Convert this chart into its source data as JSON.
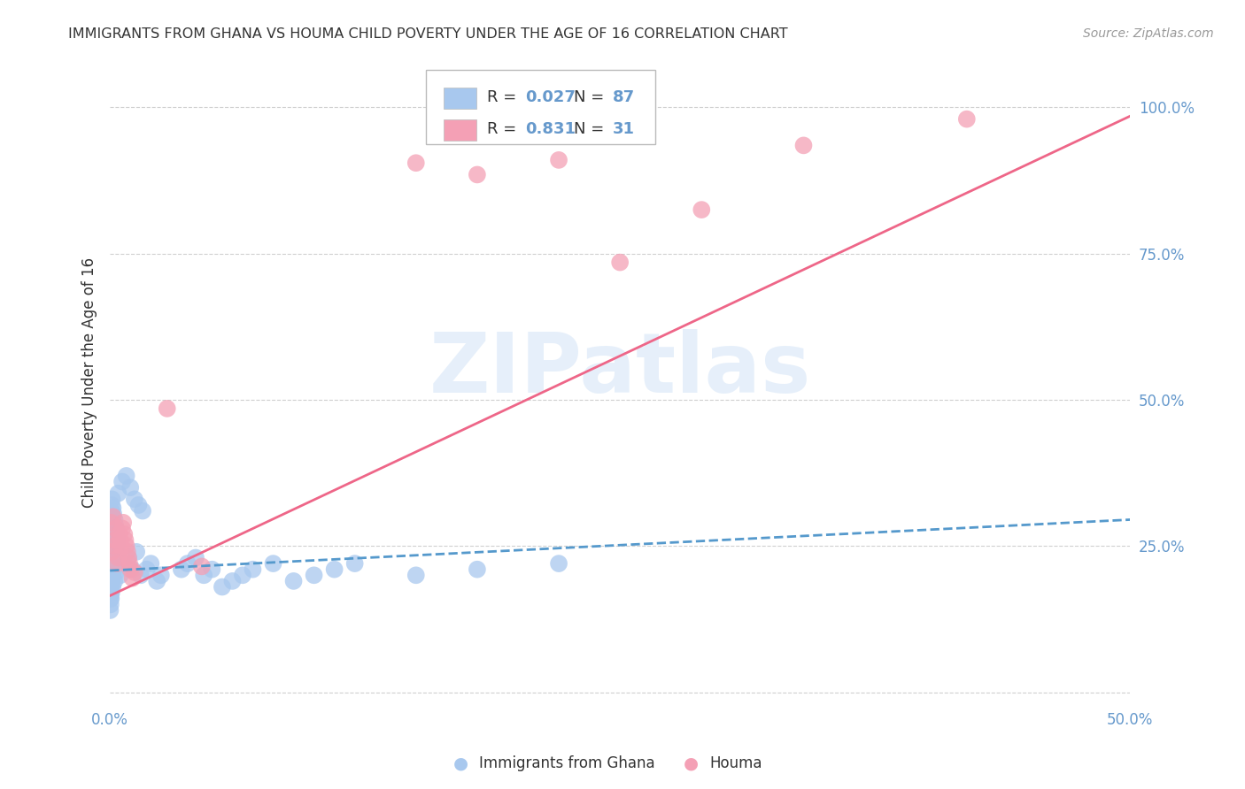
{
  "title": "IMMIGRANTS FROM GHANA VS HOUMA CHILD POVERTY UNDER THE AGE OF 16 CORRELATION CHART",
  "source": "Source: ZipAtlas.com",
  "ylabel": "Child Poverty Under the Age of 16",
  "xlim": [
    0.0,
    0.5
  ],
  "ylim": [
    -0.02,
    1.08
  ],
  "x_ticks": [
    0.0,
    0.1,
    0.2,
    0.3,
    0.4,
    0.5
  ],
  "x_tick_labels": [
    "0.0%",
    "",
    "",
    "",
    "",
    "50.0%"
  ],
  "y_tick_vals_right": [
    0.0,
    0.25,
    0.5,
    0.75,
    1.0
  ],
  "y_tick_labels_right": [
    "",
    "25.0%",
    "50.0%",
    "75.0%",
    "100.0%"
  ],
  "grid_color": "#d0d0d0",
  "background_color": "#ffffff",
  "watermark_text": "ZIPatlas",
  "legend_r1": "0.027",
  "legend_n1": "87",
  "legend_r2": "0.831",
  "legend_n2": "31",
  "ghana_color": "#a8c8ee",
  "houma_color": "#f4a0b5",
  "ghana_line_color": "#5599cc",
  "houma_line_color": "#ee6688",
  "text_color": "#333333",
  "tick_color": "#6699cc",
  "ghana_scatter_x": [
    0.0008,
    0.001,
    0.0012,
    0.0015,
    0.0018,
    0.002,
    0.0022,
    0.0025,
    0.0028,
    0.003,
    0.0005,
    0.0007,
    0.0009,
    0.0011,
    0.0013,
    0.0016,
    0.0019,
    0.0021,
    0.0024,
    0.0027,
    0.0006,
    0.0008,
    0.001,
    0.0014,
    0.0017,
    0.0023,
    0.0026,
    0.0029,
    0.0032,
    0.0035,
    0.0004,
    0.0006,
    0.0008,
    0.001,
    0.0012,
    0.0015,
    0.0018,
    0.002,
    0.0003,
    0.0005,
    0.0007,
    0.0009,
    0.0011,
    0.0013,
    0.0002,
    0.0004,
    0.0006,
    0.0008,
    0.001,
    0.0001,
    0.0003,
    0.0005,
    0.0007,
    0.005,
    0.007,
    0.009,
    0.011,
    0.013,
    0.015,
    0.018,
    0.02,
    0.023,
    0.025,
    0.004,
    0.006,
    0.008,
    0.01,
    0.012,
    0.014,
    0.016,
    0.035,
    0.038,
    0.042,
    0.046,
    0.05,
    0.055,
    0.06,
    0.065,
    0.07,
    0.08,
    0.09,
    0.1,
    0.11,
    0.12,
    0.15,
    0.18,
    0.22
  ],
  "ghana_scatter_y": [
    0.24,
    0.22,
    0.2,
    0.26,
    0.21,
    0.23,
    0.19,
    0.25,
    0.215,
    0.205,
    0.28,
    0.27,
    0.26,
    0.29,
    0.3,
    0.285,
    0.275,
    0.265,
    0.255,
    0.245,
    0.31,
    0.32,
    0.33,
    0.315,
    0.305,
    0.295,
    0.285,
    0.275,
    0.265,
    0.255,
    0.2,
    0.21,
    0.22,
    0.23,
    0.2,
    0.21,
    0.22,
    0.23,
    0.18,
    0.19,
    0.2,
    0.21,
    0.22,
    0.18,
    0.16,
    0.17,
    0.18,
    0.19,
    0.2,
    0.14,
    0.15,
    0.16,
    0.17,
    0.2,
    0.22,
    0.23,
    0.21,
    0.24,
    0.2,
    0.21,
    0.22,
    0.19,
    0.2,
    0.34,
    0.36,
    0.37,
    0.35,
    0.33,
    0.32,
    0.31,
    0.21,
    0.22,
    0.23,
    0.2,
    0.21,
    0.18,
    0.19,
    0.2,
    0.21,
    0.22,
    0.19,
    0.2,
    0.21,
    0.22,
    0.2,
    0.21,
    0.22
  ],
  "houma_scatter_x": [
    0.0005,
    0.001,
    0.0015,
    0.002,
    0.0025,
    0.003,
    0.0035,
    0.004,
    0.0045,
    0.005,
    0.0055,
    0.006,
    0.0065,
    0.007,
    0.0075,
    0.008,
    0.0085,
    0.009,
    0.0095,
    0.01,
    0.011,
    0.012,
    0.028,
    0.045,
    0.15,
    0.18,
    0.22,
    0.25,
    0.29,
    0.34,
    0.42
  ],
  "houma_scatter_y": [
    0.29,
    0.24,
    0.3,
    0.25,
    0.26,
    0.28,
    0.22,
    0.23,
    0.27,
    0.26,
    0.25,
    0.28,
    0.29,
    0.27,
    0.26,
    0.25,
    0.24,
    0.23,
    0.22,
    0.21,
    0.195,
    0.205,
    0.485,
    0.215,
    0.905,
    0.885,
    0.91,
    0.735,
    0.825,
    0.935,
    0.98
  ],
  "ghana_trend_x": [
    0.0,
    0.5
  ],
  "ghana_trend_y": [
    0.208,
    0.295
  ],
  "houma_trend_x": [
    0.0,
    0.5
  ],
  "houma_trend_y": [
    0.165,
    0.985
  ],
  "ghana_trend_style": "--",
  "houma_trend_style": "-"
}
